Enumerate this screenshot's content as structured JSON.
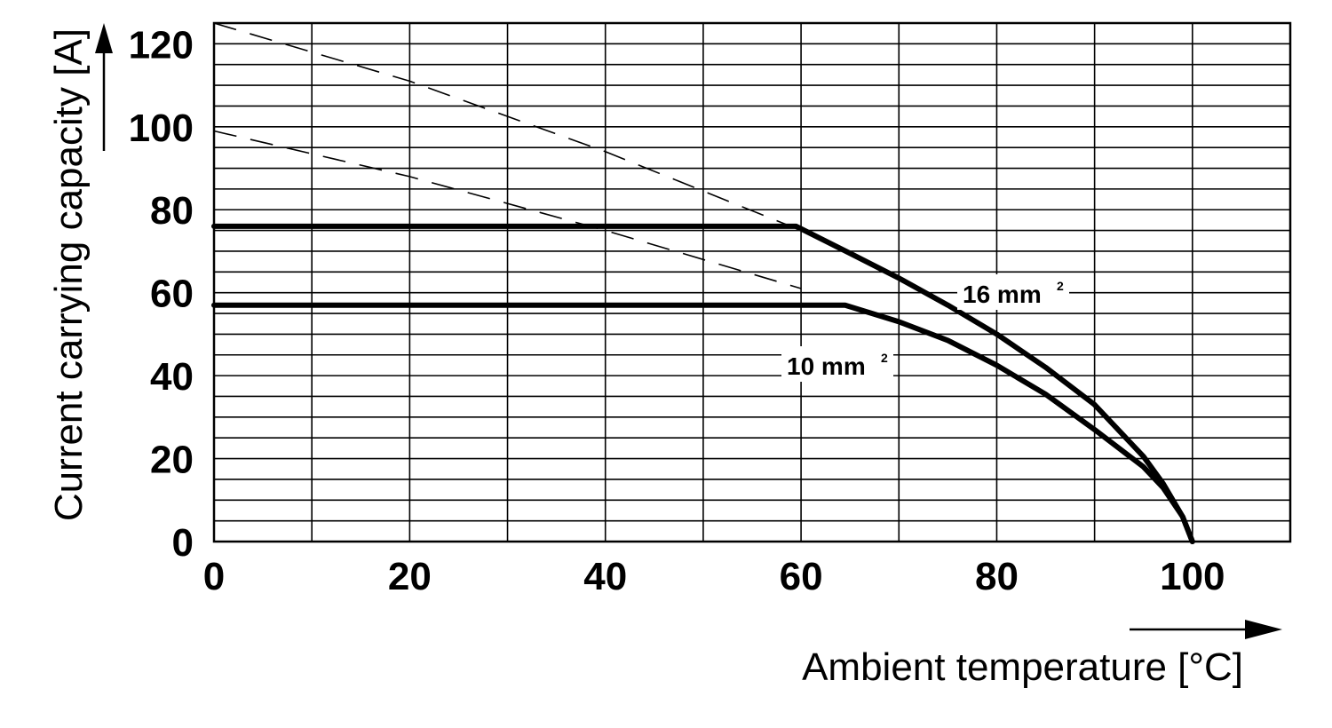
{
  "chart_data": {
    "type": "line",
    "xlabel": "Ambient temperature [°C]",
    "ylabel": "Current carrying capacity [A]",
    "xlim": [
      0,
      110
    ],
    "ylim": [
      0,
      125
    ],
    "x_ticks": [
      0,
      20,
      40,
      60,
      80,
      100
    ],
    "y_ticks": [
      0,
      20,
      40,
      60,
      80,
      100,
      120
    ],
    "x_tick_labels": [
      "0",
      "20",
      "40",
      "60",
      "80",
      "100"
    ],
    "y_tick_labels": [
      "0",
      "20",
      "40",
      "60",
      "80",
      "100",
      "120"
    ],
    "grid": true,
    "grid_x_step": 10,
    "grid_y_step": 5,
    "series": [
      {
        "name": "16 mm",
        "name_sup": "2",
        "style": "solid",
        "x": [
          0,
          59.5,
          65,
          70,
          75,
          80,
          85,
          90,
          95,
          97,
          99,
          100
        ],
        "y": [
          76,
          76,
          69.5,
          63.5,
          57,
          50,
          42,
          33,
          20.5,
          14,
          6,
          0
        ]
      },
      {
        "name": "10 mm",
        "name_sup": "2",
        "style": "solid",
        "x": [
          0,
          64.5,
          70,
          75,
          80,
          85,
          90,
          95,
          97,
          99,
          100
        ],
        "y": [
          57,
          57,
          53,
          48.5,
          42.5,
          35.5,
          27,
          18,
          13,
          6,
          0
        ]
      },
      {
        "style": "dashed",
        "x": [
          0,
          20,
          40,
          60
        ],
        "y": [
          125,
          111,
          94,
          75
        ]
      },
      {
        "style": "dashed",
        "x": [
          0,
          20,
          40,
          60
        ],
        "y": [
          99,
          88,
          75,
          61
        ]
      }
    ],
    "colors": {
      "line": "#000000",
      "grid": "#000000",
      "background": "#ffffff"
    }
  }
}
